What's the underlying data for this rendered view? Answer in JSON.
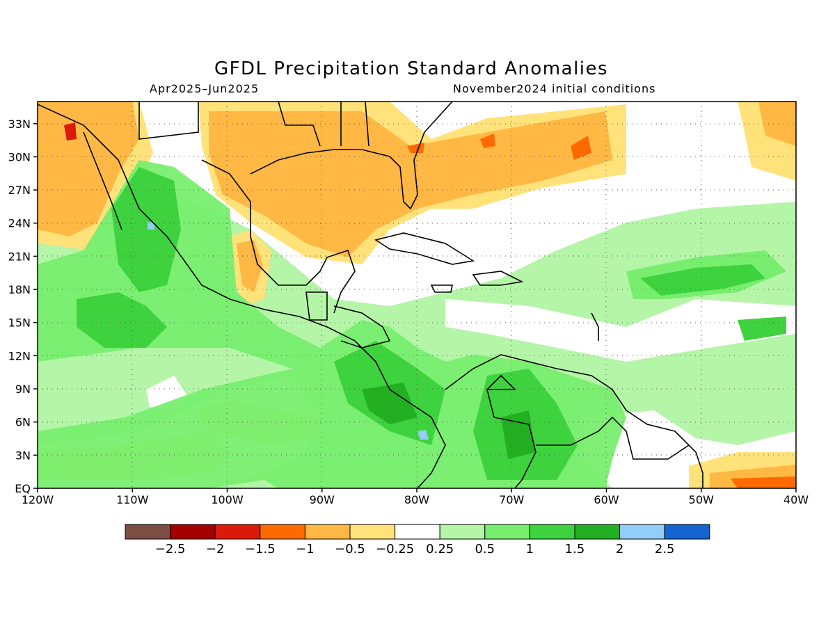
{
  "title": "GFDL Precipitation Standard Anomalies",
  "subtitle_left": "Apr2025–Jun2025",
  "subtitle_right": "November2024 initial conditions",
  "map": {
    "lon_range": [
      -120,
      -40
    ],
    "lat_range": [
      0,
      35
    ],
    "lon_ticks": [
      {
        "value": -120,
        "label": "120W"
      },
      {
        "value": -110,
        "label": "110W"
      },
      {
        "value": -100,
        "label": "100W"
      },
      {
        "value": -90,
        "label": "90W"
      },
      {
        "value": -80,
        "label": "80W"
      },
      {
        "value": -70,
        "label": "70W"
      },
      {
        "value": -60,
        "label": "60W"
      },
      {
        "value": -50,
        "label": "50W"
      },
      {
        "value": -40,
        "label": "40W"
      }
    ],
    "lat_ticks": [
      {
        "value": 0,
        "label": "EQ"
      },
      {
        "value": 3,
        "label": "3N"
      },
      {
        "value": 6,
        "label": "6N"
      },
      {
        "value": 9,
        "label": "9N"
      },
      {
        "value": 12,
        "label": "12N"
      },
      {
        "value": 15,
        "label": "15N"
      },
      {
        "value": 18,
        "label": "18N"
      },
      {
        "value": 21,
        "label": "21N"
      },
      {
        "value": 24,
        "label": "24N"
      },
      {
        "value": 27,
        "label": "27N"
      },
      {
        "value": 30,
        "label": "30N"
      },
      {
        "value": 33,
        "label": "33N"
      }
    ],
    "grid": true
  },
  "colorbar": {
    "colors": [
      "#7a4f42",
      "#a50000",
      "#dc1a0a",
      "#ff6a00",
      "#ffb844",
      "#ffe27a",
      "#ffffff",
      "#b4f5a8",
      "#78ee6e",
      "#3ed23e",
      "#22b022",
      "#92cef8",
      "#1464d2"
    ],
    "labels": [
      "−2.5",
      "−2",
      "−1.5",
      "−1",
      "−0.5",
      "−0.25",
      "0.25",
      "0.5",
      "1",
      "1.5",
      "2",
      "2.5"
    ]
  }
}
